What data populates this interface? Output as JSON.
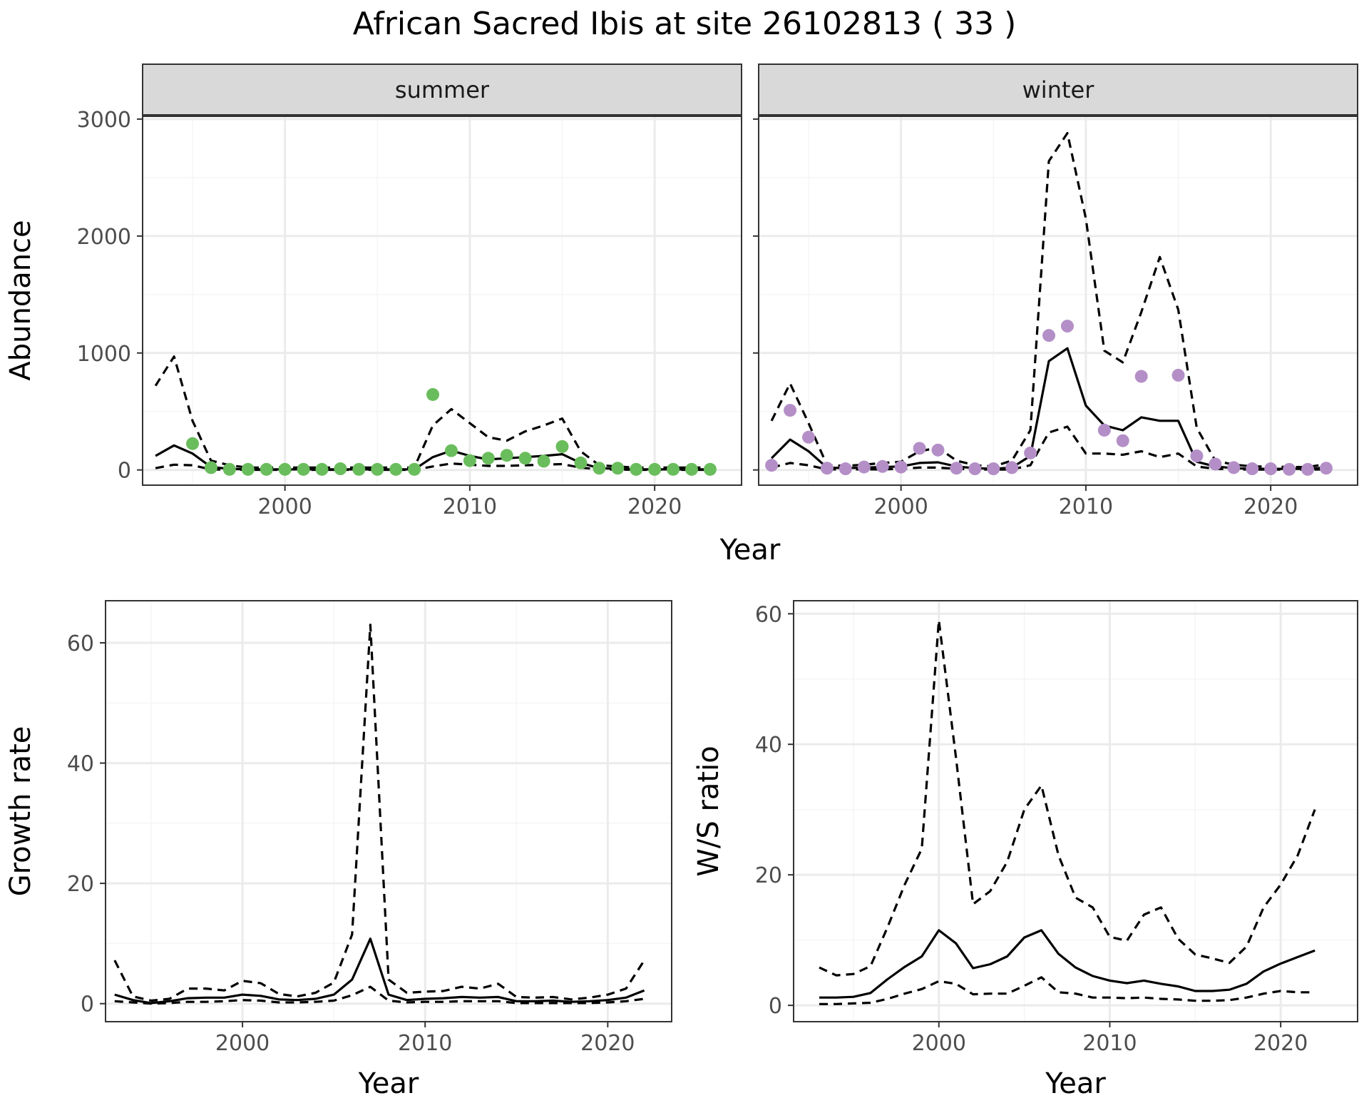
{
  "figure": {
    "title": "African Sacred Ibis at site 26102813 ( 33 )"
  },
  "colors": {
    "summer_points": "#6abd5c",
    "winter_points": "#b48fc7",
    "line": "#000000",
    "grid_major": "#ebebeb",
    "grid_minor": "#f5f5f5",
    "strip_fill": "#d9d9d9",
    "panel_border": "#333333"
  },
  "chart_data": [
    {
      "type": "line",
      "facet": "summer",
      "points_color": "summer_points",
      "xlim": [
        1992.3,
        2024.7
      ],
      "ylim": [
        -130,
        3030
      ],
      "xticks": [
        2000,
        2010,
        2020
      ],
      "yticks": [
        0,
        1000,
        2000,
        3000
      ],
      "xlabel": "Year",
      "ylabel": "Abundance",
      "x": [
        1993,
        1994,
        1995,
        1996,
        1997,
        1998,
        1999,
        2000,
        2001,
        2002,
        2003,
        2004,
        2005,
        2006,
        2007,
        2008,
        2009,
        2010,
        2011,
        2012,
        2013,
        2014,
        2015,
        2016,
        2017,
        2018,
        2019,
        2020,
        2021,
        2022,
        2023
      ],
      "series": [
        {
          "style": "solid",
          "values": [
            120,
            210,
            140,
            25,
            10,
            5,
            5,
            5,
            5,
            5,
            5,
            5,
            5,
            5,
            5,
            110,
            165,
            120,
            90,
            100,
            110,
            120,
            135,
            60,
            15,
            10,
            5,
            5,
            5,
            5,
            5
          ]
        },
        {
          "style": "dashed",
          "values": [
            720,
            970,
            420,
            80,
            40,
            20,
            20,
            20,
            20,
            20,
            20,
            20,
            20,
            20,
            20,
            380,
            520,
            400,
            280,
            250,
            330,
            380,
            440,
            160,
            40,
            30,
            20,
            20,
            20,
            20,
            20
          ]
        },
        {
          "style": "dashed",
          "values": [
            15,
            45,
            40,
            5,
            2,
            1,
            1,
            1,
            1,
            1,
            1,
            1,
            1,
            1,
            1,
            30,
            55,
            45,
            35,
            35,
            40,
            45,
            50,
            20,
            5,
            3,
            1,
            1,
            1,
            1,
            1
          ]
        }
      ],
      "points": {
        "x": [
          1995,
          1996,
          1997,
          1998,
          1999,
          2000,
          2001,
          2002,
          2003,
          2004,
          2005,
          2006,
          2007,
          2008,
          2009,
          2010,
          2011,
          2012,
          2013,
          2014,
          2015,
          2016,
          2017,
          2018,
          2019,
          2020,
          2021,
          2022,
          2023
        ],
        "y": [
          225,
          20,
          5,
          5,
          5,
          5,
          5,
          5,
          10,
          5,
          5,
          5,
          5,
          645,
          165,
          80,
          100,
          125,
          100,
          75,
          200,
          60,
          15,
          15,
          5,
          5,
          5,
          5,
          5
        ]
      }
    },
    {
      "type": "line",
      "facet": "winter",
      "points_color": "winter_points",
      "xlim": [
        1992.3,
        2024.7
      ],
      "ylim": [
        -130,
        3030
      ],
      "xticks": [
        2000,
        2010,
        2020
      ],
      "yticks": [
        0,
        1000,
        2000,
        3000
      ],
      "xlabel": "Year",
      "ylabel": "Abundance",
      "x": [
        1993,
        1994,
        1995,
        1996,
        1997,
        1998,
        1999,
        2000,
        2001,
        2002,
        2003,
        2004,
        2005,
        2006,
        2007,
        2008,
        2009,
        2010,
        2011,
        2012,
        2013,
        2014,
        2015,
        2016,
        2017,
        2018,
        2019,
        2020,
        2021,
        2022,
        2023
      ],
      "series": [
        {
          "style": "solid",
          "values": [
            100,
            260,
            160,
            20,
            15,
            20,
            25,
            30,
            60,
            65,
            30,
            15,
            10,
            20,
            120,
            930,
            1040,
            550,
            380,
            340,
            450,
            420,
            420,
            70,
            30,
            15,
            10,
            10,
            10,
            10,
            20
          ]
        },
        {
          "style": "dashed",
          "values": [
            420,
            740,
            400,
            40,
            35,
            45,
            60,
            70,
            160,
            190,
            80,
            40,
            30,
            80,
            340,
            2640,
            2880,
            2150,
            1020,
            920,
            1350,
            1820,
            1370,
            360,
            80,
            45,
            30,
            30,
            25,
            25,
            50
          ]
        },
        {
          "style": "dashed",
          "values": [
            20,
            60,
            40,
            5,
            5,
            5,
            5,
            10,
            20,
            20,
            10,
            5,
            3,
            5,
            40,
            320,
            370,
            140,
            140,
            130,
            160,
            110,
            140,
            30,
            10,
            5,
            3,
            3,
            3,
            3,
            5
          ]
        }
      ],
      "points": {
        "x": [
          1993,
          1994,
          1995,
          1996,
          1997,
          1998,
          1999,
          2000,
          2001,
          2002,
          2003,
          2004,
          2005,
          2006,
          2007,
          2008,
          2009,
          2011,
          2012,
          2013,
          2015,
          2016,
          2017,
          2018,
          2019,
          2020,
          2021,
          2022,
          2023
        ],
        "y": [
          40,
          510,
          280,
          15,
          10,
          25,
          30,
          25,
          185,
          170,
          15,
          10,
          10,
          20,
          145,
          1150,
          1230,
          340,
          250,
          800,
          810,
          120,
          50,
          20,
          10,
          10,
          5,
          5,
          15
        ]
      }
    },
    {
      "type": "line",
      "xlim": [
        1992.5,
        2023.5
      ],
      "ylim": [
        -3,
        67
      ],
      "xticks": [
        2000,
        2010,
        2020
      ],
      "yticks": [
        0,
        20,
        40,
        60
      ],
      "xlabel": "Year",
      "ylabel": "Growth rate",
      "x": [
        1993,
        1994,
        1995,
        1996,
        1997,
        1998,
        1999,
        2000,
        2001,
        2002,
        2003,
        2004,
        2005,
        2006,
        2007,
        2008,
        2009,
        2010,
        2011,
        2012,
        2013,
        2014,
        2015,
        2016,
        2017,
        2018,
        2019,
        2020,
        2021,
        2022
      ],
      "series": [
        {
          "style": "solid",
          "values": [
            1.5,
            0.6,
            0.1,
            0.4,
            0.9,
            1.0,
            1.0,
            1.5,
            1.3,
            0.7,
            0.6,
            0.8,
            1.5,
            4.0,
            10.8,
            1.5,
            0.6,
            0.8,
            0.9,
            1.1,
            1.0,
            1.1,
            0.4,
            0.4,
            0.5,
            0.3,
            0.4,
            0.6,
            1.0,
            2.2
          ]
        },
        {
          "style": "dashed",
          "values": [
            7.2,
            1.2,
            0.5,
            0.8,
            2.5,
            2.5,
            2.2,
            3.8,
            3.4,
            1.6,
            1.2,
            1.8,
            3.5,
            11.5,
            63,
            4.0,
            1.8,
            2.0,
            2.1,
            2.8,
            2.5,
            3.3,
            1.1,
            1.0,
            1.1,
            0.7,
            1.0,
            1.5,
            2.5,
            7.2
          ]
        },
        {
          "style": "dashed",
          "values": [
            0.4,
            0.2,
            0.0,
            0.1,
            0.3,
            0.3,
            0.4,
            0.6,
            0.5,
            0.2,
            0.2,
            0.3,
            0.5,
            1.4,
            2.8,
            0.5,
            0.2,
            0.3,
            0.3,
            0.4,
            0.4,
            0.4,
            0.1,
            0.1,
            0.1,
            0.1,
            0.1,
            0.2,
            0.4,
            0.8
          ]
        }
      ]
    },
    {
      "type": "line",
      "xlim": [
        1991.5,
        2024.5
      ],
      "ylim": [
        -2.5,
        62
      ],
      "xticks": [
        2000,
        2010,
        2020
      ],
      "yticks": [
        0,
        20,
        40,
        60
      ],
      "xlabel": "Year",
      "ylabel": "W/S ratio",
      "x": [
        1993,
        1994,
        1995,
        1996,
        1997,
        1998,
        1999,
        2000,
        2001,
        2002,
        2003,
        2004,
        2005,
        2006,
        2007,
        2008,
        2009,
        2010,
        2011,
        2012,
        2013,
        2014,
        2015,
        2016,
        2017,
        2018,
        2019,
        2020,
        2021,
        2022
      ],
      "series": [
        {
          "style": "solid",
          "values": [
            1.2,
            1.2,
            1.3,
            1.9,
            4.0,
            5.9,
            7.5,
            11.5,
            9.5,
            5.7,
            6.3,
            7.5,
            10.4,
            11.5,
            7.9,
            5.8,
            4.5,
            3.8,
            3.4,
            3.8,
            3.3,
            2.9,
            2.2,
            2.2,
            2.4,
            3.3,
            5.2,
            6.4,
            7.4,
            8.4
          ]
        },
        {
          "style": "dashed",
          "values": [
            5.8,
            4.6,
            4.8,
            6.0,
            12.0,
            18.5,
            24.0,
            59.0,
            38.0,
            15.5,
            17.5,
            22.0,
            30.0,
            33.7,
            23.0,
            16.5,
            15.0,
            10.5,
            9.9,
            13.9,
            15.0,
            10.2,
            7.8,
            7.2,
            6.5,
            9.0,
            15.0,
            18.5,
            23.0,
            30.0
          ]
        },
        {
          "style": "dashed",
          "values": [
            0.2,
            0.2,
            0.3,
            0.4,
            1.0,
            1.8,
            2.5,
            3.7,
            3.3,
            1.7,
            1.8,
            1.8,
            3.0,
            4.3,
            2.0,
            1.8,
            1.2,
            1.2,
            1.1,
            1.2,
            1.0,
            0.9,
            0.7,
            0.7,
            0.8,
            1.2,
            1.8,
            2.2,
            2.0,
            2.0
          ]
        }
      ]
    }
  ]
}
